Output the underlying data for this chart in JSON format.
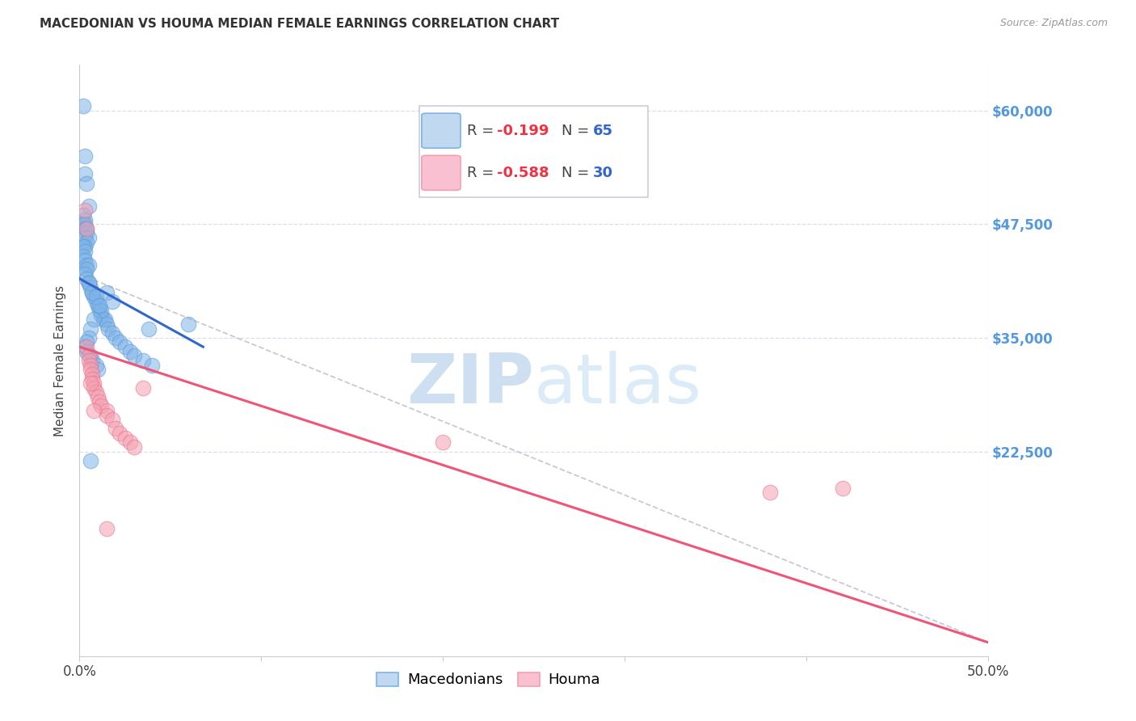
{
  "title": "MACEDONIAN VS HOUMA MEDIAN FEMALE EARNINGS CORRELATION CHART",
  "source": "Source: ZipAtlas.com",
  "ylabel": "Median Female Earnings",
  "watermark_zip": "ZIP",
  "watermark_atlas": "atlas",
  "xlim": [
    0.0,
    0.5
  ],
  "ylim": [
    0,
    65000
  ],
  "yticks_right": [
    22500,
    35000,
    47500,
    60000
  ],
  "ytick_right_labels": [
    "$22,500",
    "$35,000",
    "$47,500",
    "$60,000"
  ],
  "xtick_vals": [
    0.0,
    0.1,
    0.2,
    0.3,
    0.4,
    0.5
  ],
  "xtick_labels": [
    "0.0%",
    "",
    "",
    "",
    "",
    "50.0%"
  ],
  "blue_R": "-0.199",
  "blue_N": "65",
  "pink_R": "-0.588",
  "pink_N": "30",
  "blue_color": "#7EB3E8",
  "blue_edge": "#5A9AD4",
  "pink_color": "#F4A0B0",
  "pink_edge": "#E87090",
  "blue_label": "Macedonians",
  "pink_label": "Houma",
  "blue_trend_x": [
    0.0,
    0.068
  ],
  "blue_trend_y": [
    41500,
    34000
  ],
  "pink_trend_x": [
    0.0,
    0.5
  ],
  "pink_trend_y": [
    34000,
    1500
  ],
  "gray_trend_x": [
    0.0,
    0.5
  ],
  "gray_trend_y": [
    42000,
    1500
  ],
  "bg_color": "#FFFFFF",
  "grid_color": "#DDDDEE",
  "right_tick_color": "#5599DD",
  "blue_scatter_x": [
    0.002,
    0.003,
    0.003,
    0.004,
    0.005,
    0.002,
    0.003,
    0.002,
    0.003,
    0.003,
    0.004,
    0.004,
    0.003,
    0.005,
    0.004,
    0.003,
    0.002,
    0.003,
    0.002,
    0.003,
    0.004,
    0.005,
    0.004,
    0.003,
    0.004,
    0.005,
    0.006,
    0.007,
    0.008,
    0.009,
    0.01,
    0.011,
    0.012,
    0.013,
    0.014,
    0.015,
    0.016,
    0.018,
    0.02,
    0.022,
    0.025,
    0.028,
    0.03,
    0.035,
    0.04,
    0.015,
    0.018,
    0.012,
    0.008,
    0.006,
    0.005,
    0.004,
    0.003,
    0.004,
    0.006,
    0.007,
    0.009,
    0.01,
    0.06,
    0.038,
    0.005,
    0.007,
    0.009,
    0.011,
    0.006
  ],
  "blue_scatter_y": [
    60500,
    55000,
    53000,
    52000,
    49500,
    48500,
    48000,
    47500,
    47500,
    47000,
    47000,
    46500,
    46000,
    46000,
    45500,
    45000,
    45000,
    44500,
    44000,
    43500,
    43000,
    43000,
    42500,
    42000,
    41500,
    41000,
    40500,
    40000,
    39500,
    39000,
    38500,
    38000,
    37500,
    37000,
    37000,
    36500,
    36000,
    35500,
    35000,
    34500,
    34000,
    33500,
    33000,
    32500,
    32000,
    40000,
    39000,
    38000,
    37000,
    36000,
    35000,
    34500,
    34000,
    33500,
    33000,
    32500,
    32000,
    31500,
    36500,
    36000,
    41000,
    40000,
    39500,
    38500,
    21500
  ],
  "pink_scatter_x": [
    0.003,
    0.004,
    0.004,
    0.005,
    0.005,
    0.006,
    0.006,
    0.007,
    0.007,
    0.008,
    0.008,
    0.009,
    0.01,
    0.011,
    0.012,
    0.015,
    0.015,
    0.018,
    0.02,
    0.022,
    0.025,
    0.028,
    0.03,
    0.035,
    0.2,
    0.38,
    0.42,
    0.015,
    0.006,
    0.008
  ],
  "pink_scatter_y": [
    49000,
    47000,
    34000,
    33000,
    32500,
    32000,
    31500,
    31000,
    30500,
    30000,
    29500,
    29000,
    28500,
    28000,
    27500,
    27000,
    26500,
    26000,
    25000,
    24500,
    24000,
    23500,
    23000,
    29500,
    23500,
    18000,
    18500,
    14000,
    30000,
    27000
  ]
}
